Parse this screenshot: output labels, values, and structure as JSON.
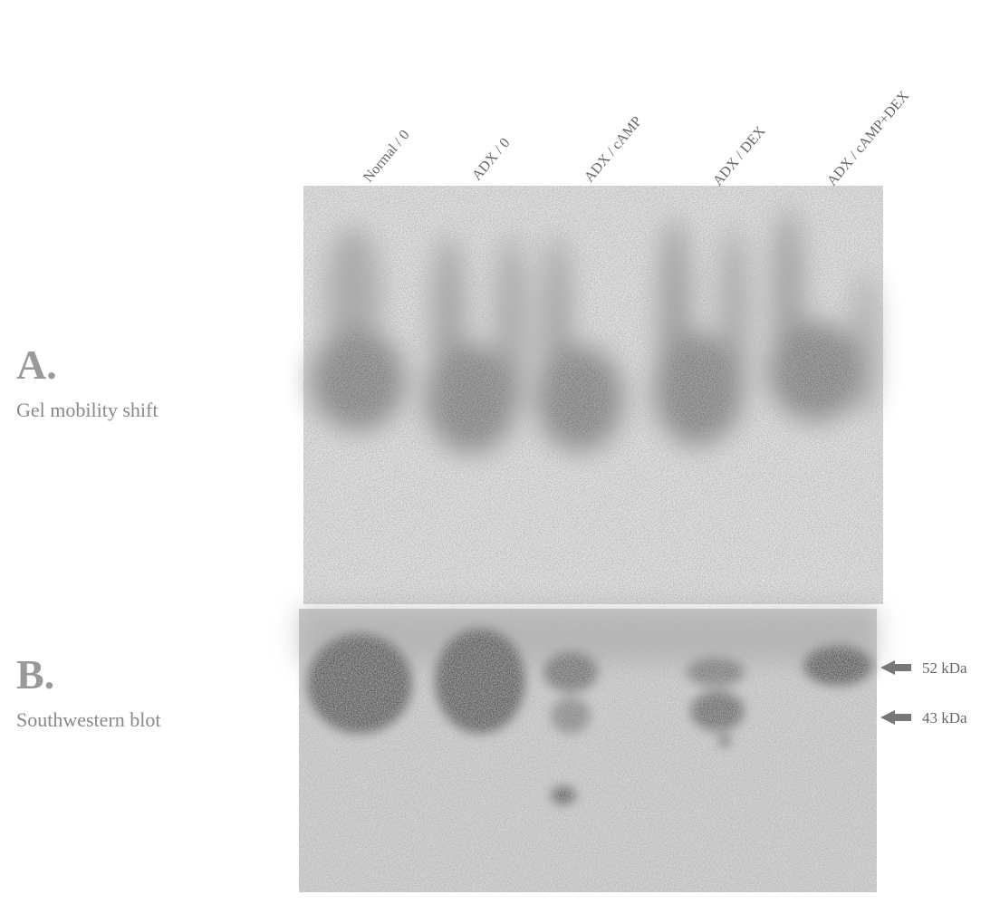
{
  "lane_labels": [
    "Normal / 0",
    "ADX / 0",
    "ADX / cAMP",
    "ADX / DEX",
    "ADX / cAMP+DEX"
  ],
  "panels": [
    {
      "letter": "A.",
      "caption": "Gel mobility shift"
    },
    {
      "letter": "B.",
      "caption": "Southwestern blot"
    }
  ],
  "markers": [
    "52 kDa",
    "43 kDa"
  ]
}
